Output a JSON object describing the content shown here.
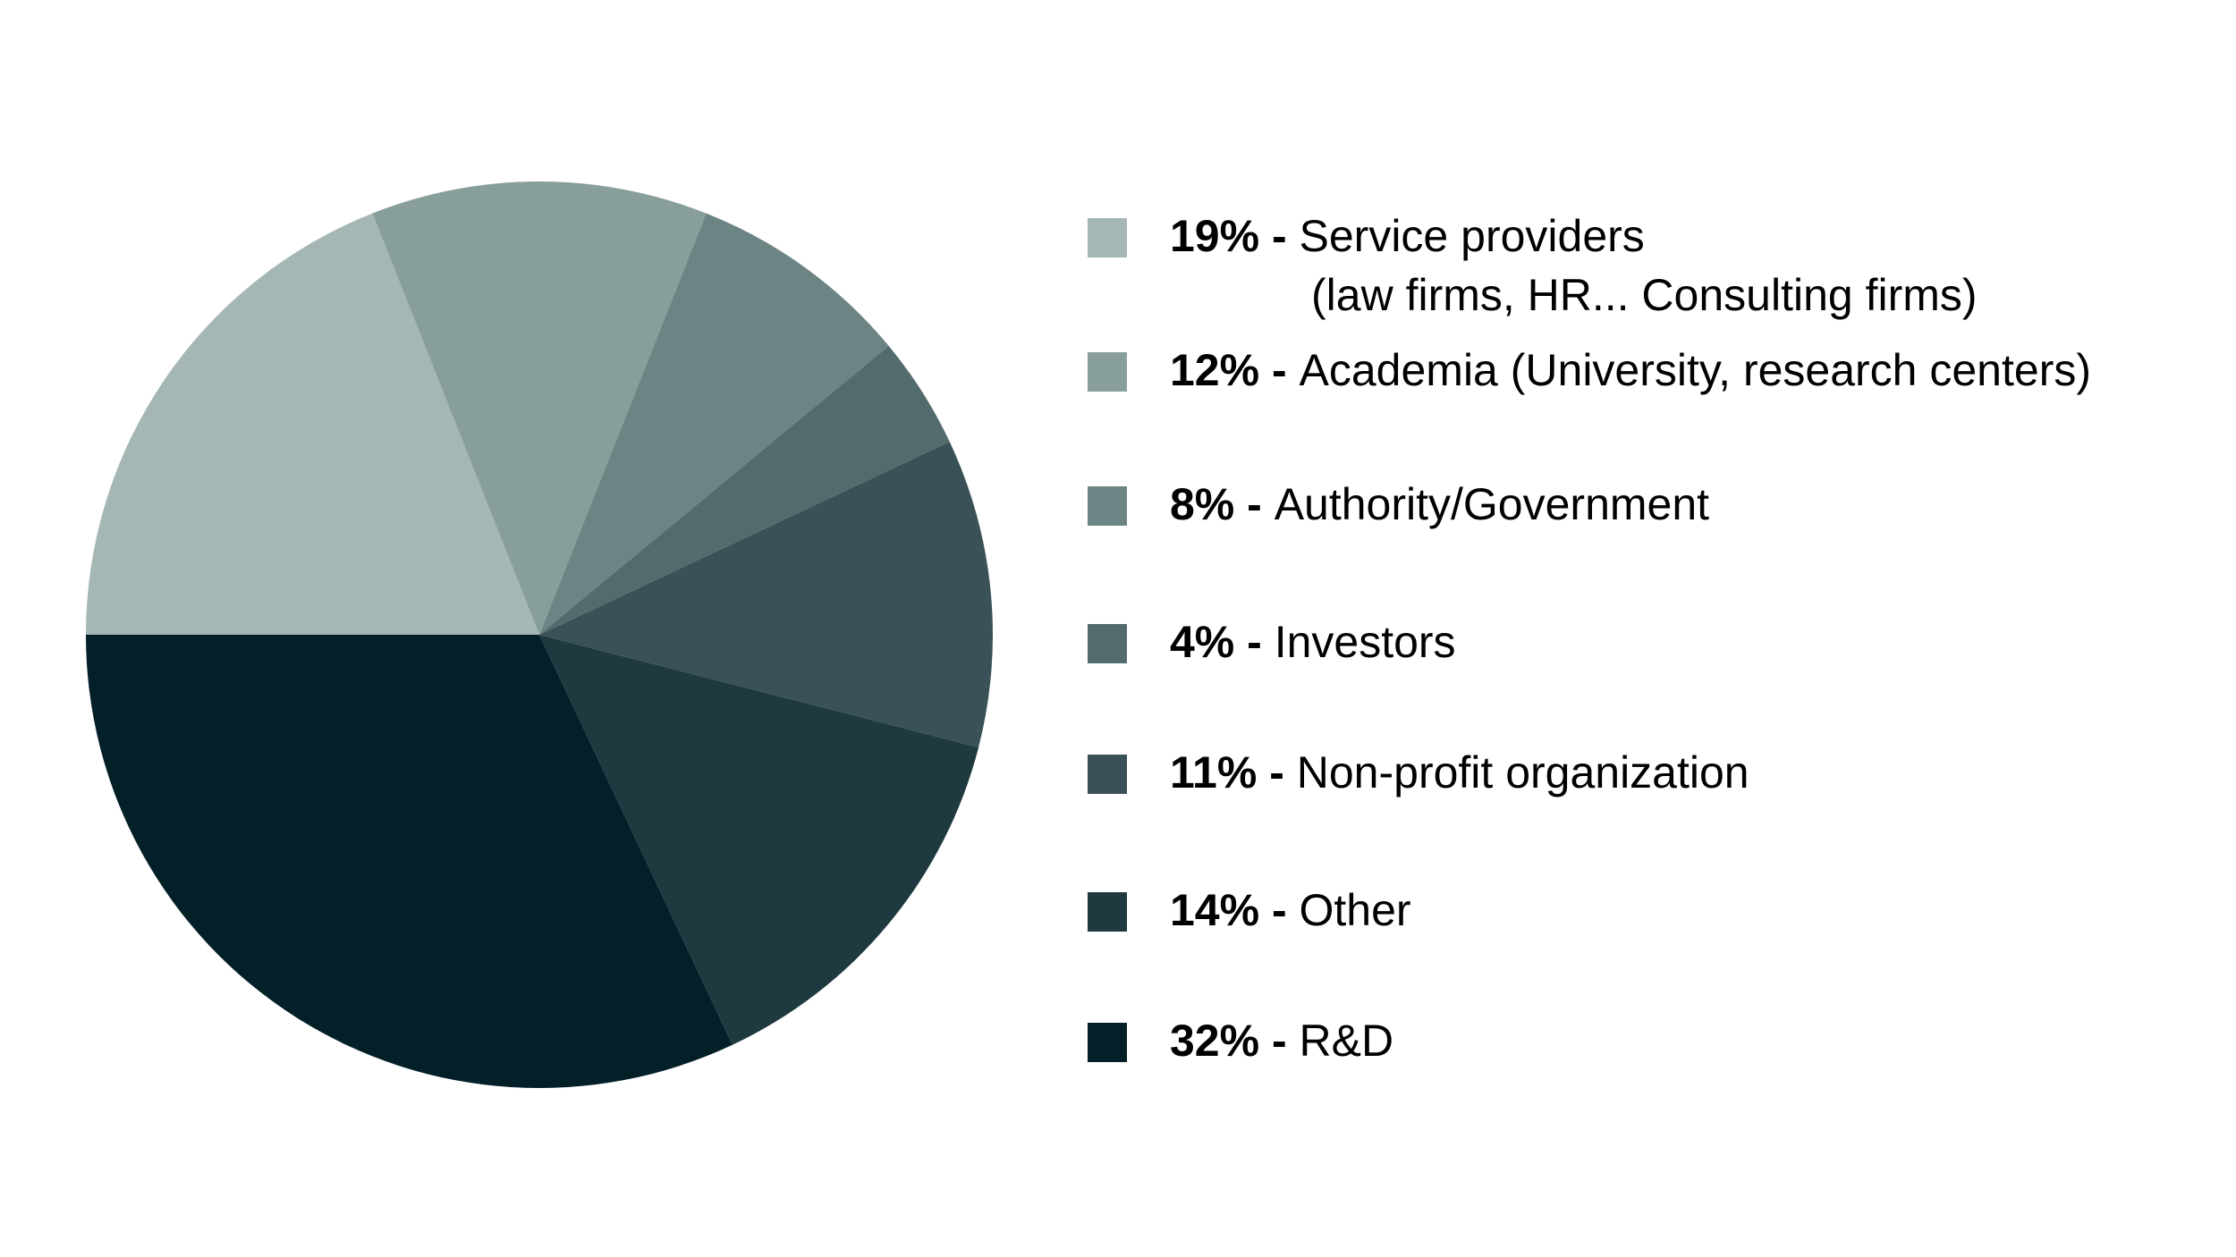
{
  "chart_data": {
    "type": "pie",
    "title": "",
    "legend_position": "right",
    "slices": [
      {
        "value": 19,
        "value_label": "19%",
        "label": "Service providers",
        "sublabel": "(law firms, HR... Consulting firms)",
        "color": "#a5b7b4"
      },
      {
        "value": 12,
        "value_label": "12%",
        "label": "Academia (University, research centers)",
        "color": "#889e9b"
      },
      {
        "value": 8,
        "value_label": "8%",
        "label": "Authority/Government",
        "color": "#6c8584"
      },
      {
        "value": 4,
        "value_label": "4%",
        "label": "Investors",
        "color": "#546b6d"
      },
      {
        "value": 11,
        "value_label": "11%",
        "label": "Non-profit organization",
        "color": "#3a5257"
      },
      {
        "value": 14,
        "value_label": "14%",
        "label": "Other",
        "color": "#1e3940"
      },
      {
        "value": 32,
        "value_label": "32%",
        "label": "R&D",
        "color": "#031f27"
      }
    ],
    "separator": " - "
  }
}
